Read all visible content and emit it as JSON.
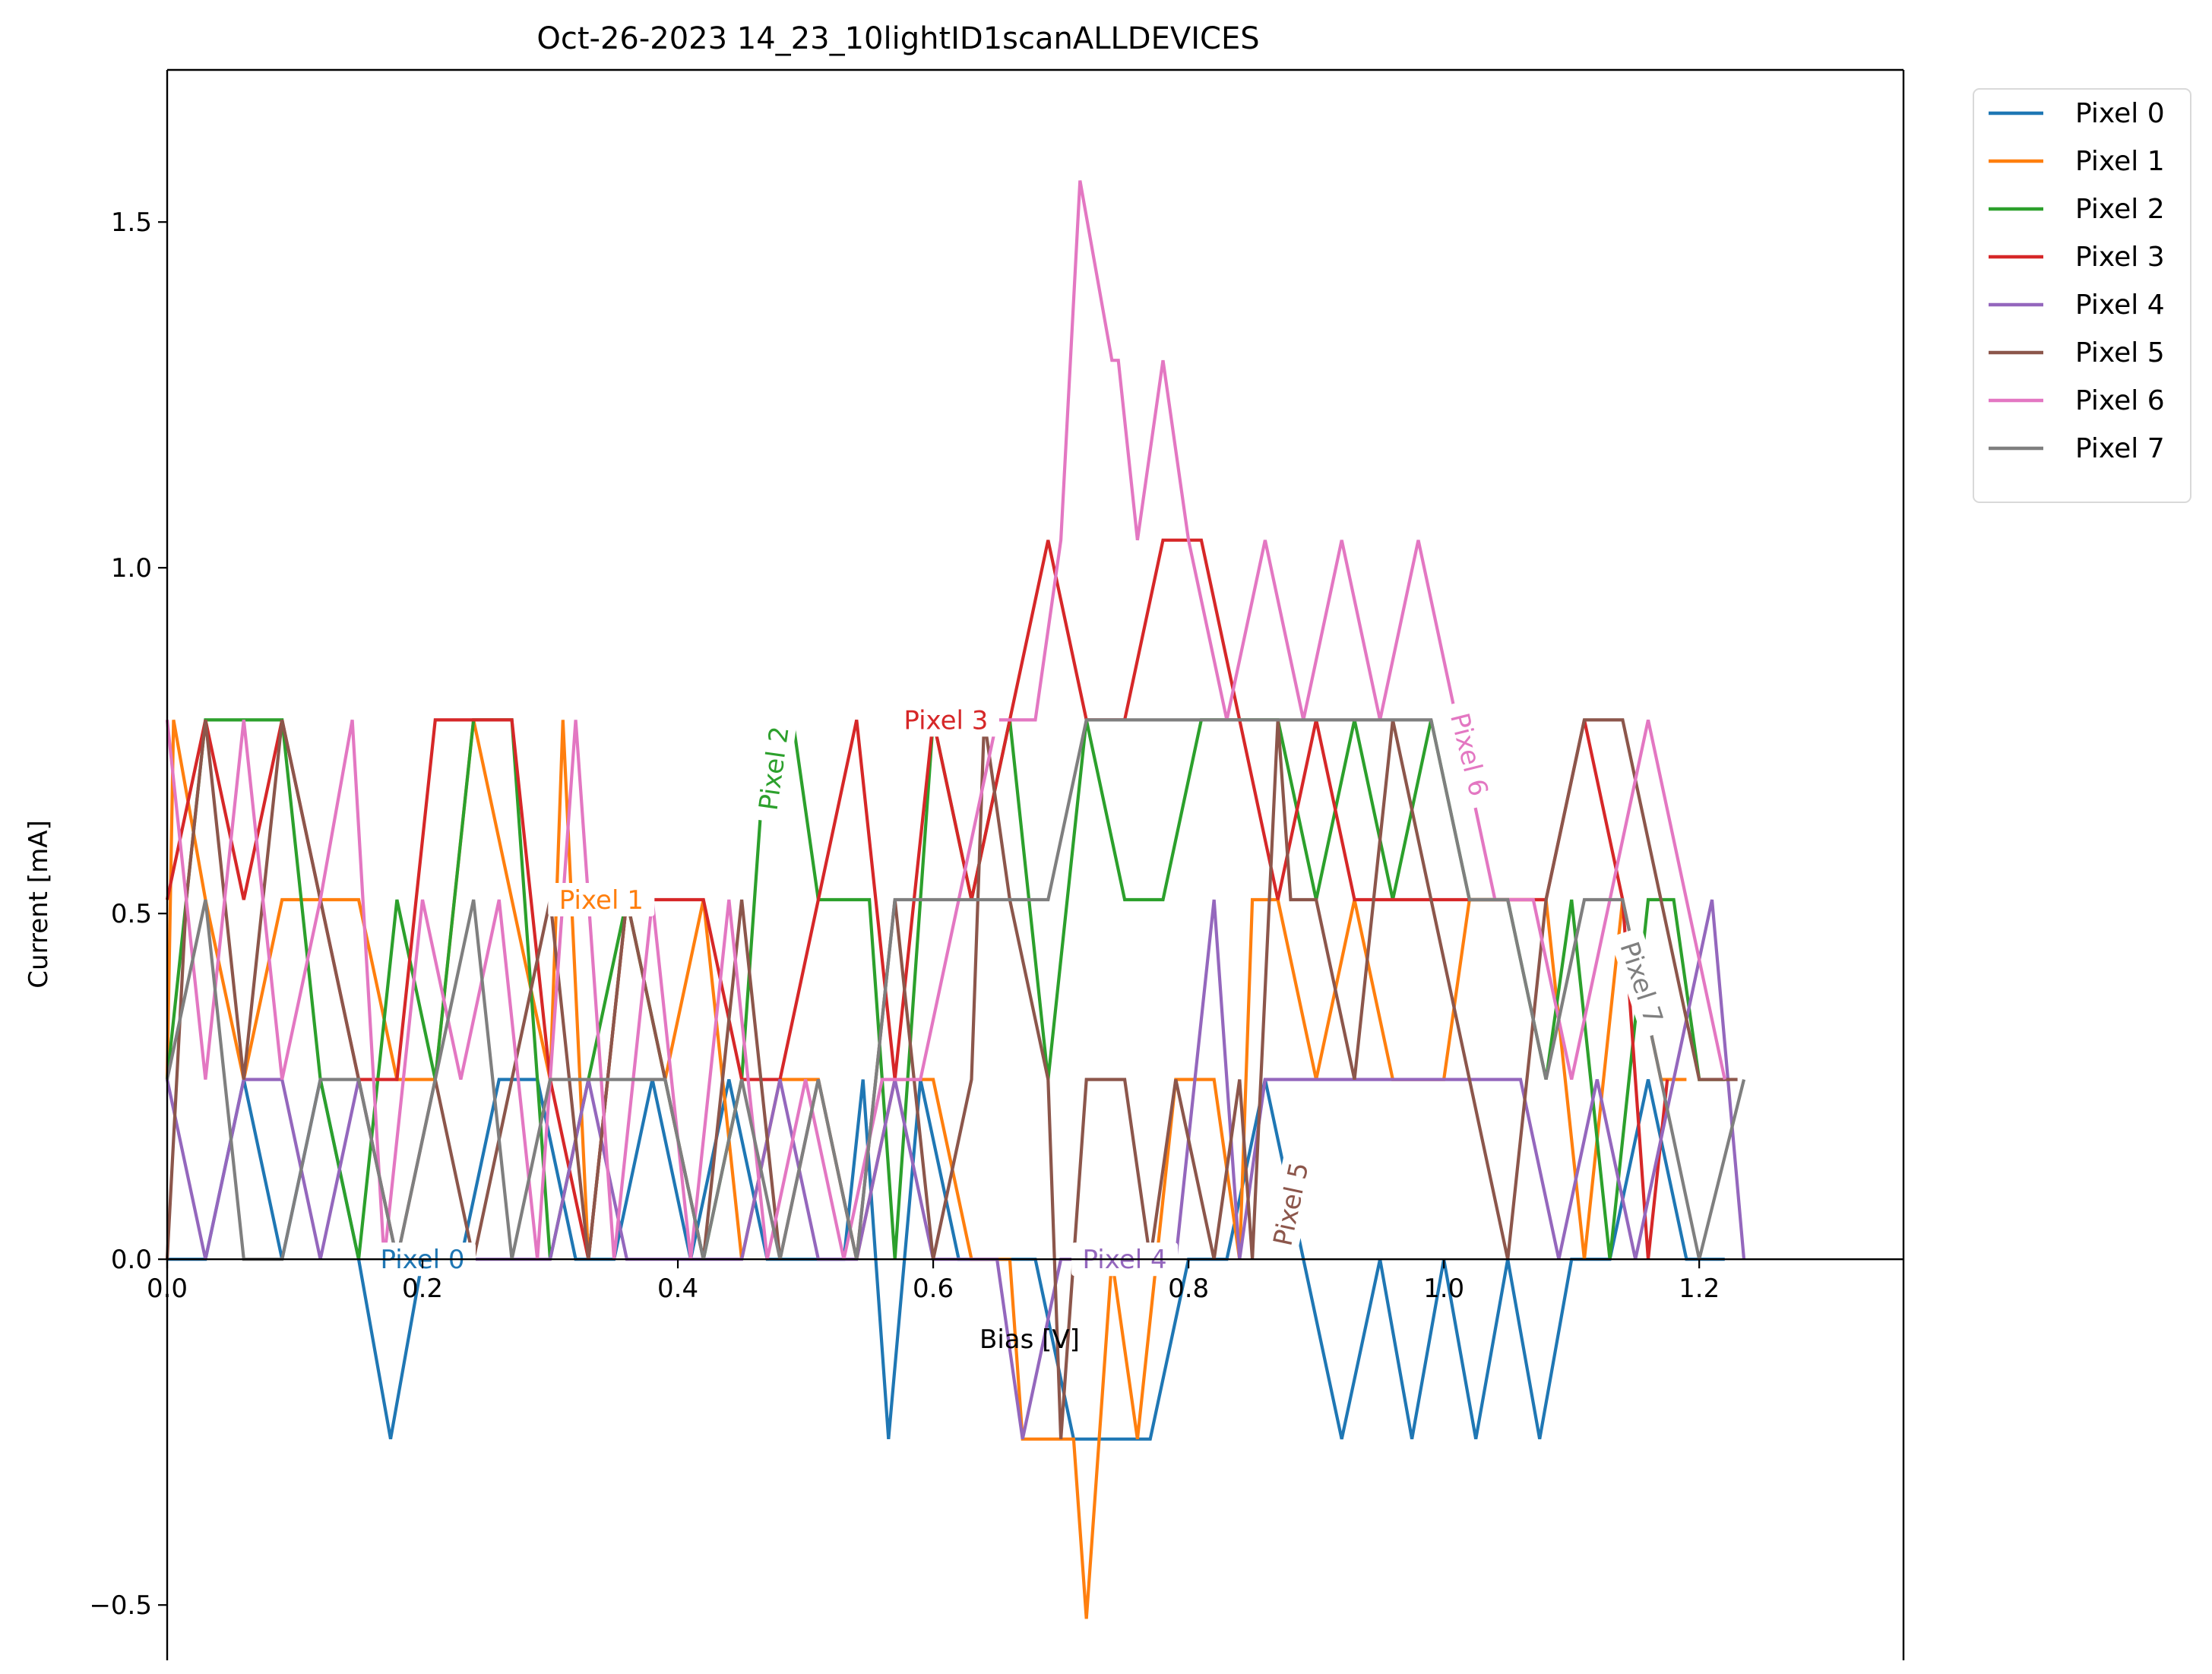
{
  "chart_data": {
    "type": "line",
    "title": "Oct-26-2023 14_23_10lightID1scanALLDEVICES",
    "xlabel": "Bias [V]",
    "ylabel": "Current [mA]",
    "xlim": [
      0.0,
      1.36
    ],
    "ylim": [
      -0.58,
      1.72
    ],
    "xticks": [
      0.0,
      0.2,
      0.4,
      0.6,
      0.8,
      1.0,
      1.2
    ],
    "xtick_labels": [
      "0.0",
      "0.2",
      "0.4",
      "0.6",
      "0.8",
      "1.0",
      "1.2"
    ],
    "yticks": [
      -0.5,
      0.0,
      0.5,
      1.0,
      1.5
    ],
    "ytick_labels": [
      "−0.5",
      "0.0",
      "0.5",
      "1.0",
      "1.5"
    ],
    "grid": false,
    "legend_position": "outside-top-right",
    "series": [
      {
        "name": "Pixel 0",
        "color": "#1f77b4",
        "x": [
          0.0,
          0.03,
          0.06,
          0.09,
          0.12,
          0.15,
          0.175,
          0.2,
          0.23,
          0.26,
          0.29,
          0.32,
          0.35,
          0.38,
          0.41,
          0.44,
          0.47,
          0.5,
          0.53,
          0.545,
          0.565,
          0.59,
          0.62,
          0.65,
          0.68,
          0.71,
          0.74,
          0.77,
          0.8,
          0.83,
          0.86,
          0.89,
          0.92,
          0.95,
          0.975,
          1.0,
          1.025,
          1.05,
          1.075,
          1.1,
          1.13,
          1.16,
          1.19,
          1.22
        ],
        "y": [
          0,
          0,
          0.26,
          0,
          0.26,
          0,
          -0.26,
          0,
          0,
          0.26,
          0.26,
          0,
          0,
          0.26,
          0,
          0.26,
          0,
          0,
          0,
          0.26,
          -0.26,
          0.26,
          0,
          0,
          0,
          -0.26,
          -0.26,
          -0.26,
          0,
          0,
          0.26,
          0,
          -0.26,
          0,
          -0.26,
          0,
          -0.26,
          0,
          -0.26,
          0,
          0,
          0.26,
          0,
          0
        ]
      },
      {
        "name": "Pixel 1",
        "color": "#ff7f0e",
        "x": [
          0.0,
          0.005,
          0.03,
          0.06,
          0.09,
          0.12,
          0.15,
          0.18,
          0.21,
          0.24,
          0.27,
          0.3,
          0.31,
          0.33,
          0.36,
          0.39,
          0.42,
          0.45,
          0.48,
          0.51,
          0.54,
          0.57,
          0.6,
          0.63,
          0.66,
          0.67,
          0.69,
          0.71,
          0.72,
          0.74,
          0.76,
          0.79,
          0.82,
          0.84,
          0.85,
          0.87,
          0.9,
          0.93,
          0.96,
          0.99,
          1.0,
          1.02,
          1.05,
          1.08,
          1.11,
          1.14,
          1.17,
          1.19
        ],
        "y": [
          0.26,
          0.78,
          0.52,
          0.26,
          0.52,
          0.52,
          0.52,
          0.26,
          0.26,
          0.78,
          0.52,
          0.26,
          0.78,
          0,
          0.52,
          0.26,
          0.52,
          0,
          0.26,
          0.26,
          0,
          0.26,
          0.26,
          0,
          0,
          -0.26,
          -0.26,
          -0.26,
          -0.52,
          0,
          -0.26,
          0.26,
          0.26,
          0,
          0.52,
          0.52,
          0.26,
          0.52,
          0.26,
          0.26,
          0.26,
          0.52,
          0.52,
          0.52,
          0,
          0.52,
          0.26,
          0.26
        ]
      },
      {
        "name": "Pixel 2",
        "color": "#2ca02c",
        "x": [
          0.0,
          0.03,
          0.06,
          0.09,
          0.12,
          0.15,
          0.18,
          0.21,
          0.24,
          0.27,
          0.3,
          0.33,
          0.36,
          0.39,
          0.42,
          0.45,
          0.47,
          0.49,
          0.51,
          0.53,
          0.55,
          0.57,
          0.6,
          0.63,
          0.66,
          0.69,
          0.72,
          0.75,
          0.78,
          0.81,
          0.84,
          0.87,
          0.9,
          0.93,
          0.96,
          0.99,
          1.02,
          1.05,
          1.08,
          1.1,
          1.13,
          1.16,
          1.18,
          1.2,
          1.22
        ],
        "y": [
          0.26,
          0.78,
          0.78,
          0.78,
          0.26,
          0,
          0.52,
          0.26,
          0.78,
          0.78,
          0,
          0.26,
          0.52,
          0.26,
          0,
          0.26,
          0.78,
          0.78,
          0.52,
          0.52,
          0.52,
          0,
          0.78,
          0.52,
          0.78,
          0.26,
          0.78,
          0.52,
          0.52,
          0.78,
          0.78,
          0.78,
          0.52,
          0.78,
          0.52,
          0.78,
          0.52,
          0.52,
          0.26,
          0.52,
          0,
          0.52,
          0.52,
          0.26,
          0.26
        ]
      },
      {
        "name": "Pixel 3",
        "color": "#d62728",
        "x": [
          0.0,
          0.03,
          0.06,
          0.09,
          0.12,
          0.15,
          0.18,
          0.21,
          0.24,
          0.27,
          0.3,
          0.33,
          0.36,
          0.39,
          0.42,
          0.45,
          0.48,
          0.51,
          0.54,
          0.57,
          0.6,
          0.63,
          0.66,
          0.69,
          0.72,
          0.75,
          0.78,
          0.81,
          0.84,
          0.87,
          0.9,
          0.93,
          0.96,
          0.99,
          1.02,
          1.05,
          1.08,
          1.11,
          1.14,
          1.16,
          1.175
        ],
        "y": [
          0.52,
          0.78,
          0.52,
          0.78,
          0.52,
          0.26,
          0.26,
          0.78,
          0.78,
          0.78,
          0.26,
          0,
          0.52,
          0.52,
          0.52,
          0.26,
          0.26,
          0.52,
          0.78,
          0.26,
          0.78,
          0.52,
          0.78,
          1.04,
          0.78,
          0.78,
          1.04,
          1.04,
          0.78,
          0.52,
          0.78,
          0.52,
          0.52,
          0.52,
          0.52,
          0.52,
          0.52,
          0.78,
          0.52,
          0,
          0.26
        ]
      },
      {
        "name": "Pixel 4",
        "color": "#9467bd",
        "x": [
          0.0,
          0.03,
          0.06,
          0.09,
          0.12,
          0.15,
          0.18,
          0.21,
          0.24,
          0.27,
          0.3,
          0.33,
          0.36,
          0.39,
          0.42,
          0.45,
          0.48,
          0.51,
          0.54,
          0.57,
          0.6,
          0.63,
          0.65,
          0.67,
          0.7,
          0.73,
          0.76,
          0.79,
          0.82,
          0.84,
          0.86,
          0.88,
          0.91,
          0.94,
          0.97,
          1.0,
          1.03,
          1.06,
          1.09,
          1.12,
          1.15,
          1.18,
          1.21,
          1.235
        ],
        "y": [
          0.26,
          0,
          0.26,
          0.26,
          0,
          0.26,
          0,
          0,
          0,
          0,
          0,
          0.26,
          0,
          0,
          0,
          0,
          0.26,
          0,
          0,
          0.26,
          0,
          0,
          0,
          -0.26,
          0,
          0,
          0,
          0,
          0.52,
          0,
          0.26,
          0.26,
          0.26,
          0.26,
          0.26,
          0.26,
          0.26,
          0.26,
          0,
          0.26,
          0,
          0.26,
          0.52,
          0
        ]
      },
      {
        "name": "Pixel 5",
        "color": "#8c564b",
        "x": [
          0.0,
          0.015,
          0.03,
          0.06,
          0.09,
          0.12,
          0.15,
          0.18,
          0.21,
          0.24,
          0.27,
          0.3,
          0.33,
          0.36,
          0.39,
          0.42,
          0.45,
          0.48,
          0.51,
          0.54,
          0.57,
          0.6,
          0.63,
          0.64,
          0.66,
          0.69,
          0.7,
          0.72,
          0.75,
          0.77,
          0.79,
          0.82,
          0.84,
          0.85,
          0.87,
          0.88,
          0.9,
          0.93,
          0.96,
          0.99,
          1.02,
          1.05,
          1.08,
          1.11,
          1.14,
          1.17,
          1.2,
          1.23
        ],
        "y": [
          0,
          0.52,
          0.78,
          0.26,
          0.78,
          0.52,
          0.26,
          0,
          0.26,
          0,
          0.26,
          0.52,
          0,
          0.52,
          0.26,
          0,
          0.52,
          0,
          0.26,
          0,
          0.52,
          0,
          0.26,
          0.78,
          0.52,
          0.26,
          -0.26,
          0.26,
          0.26,
          0,
          0.26,
          0,
          0.26,
          0,
          0.78,
          0.52,
          0.52,
          0.26,
          0.78,
          0.52,
          0.26,
          0,
          0.52,
          0.78,
          0.78,
          0.52,
          0.26,
          0.26
        ]
      },
      {
        "name": "Pixel 6",
        "color": "#e377c2",
        "x": [
          0.0,
          0.03,
          0.06,
          0.09,
          0.12,
          0.145,
          0.17,
          0.2,
          0.23,
          0.26,
          0.29,
          0.32,
          0.35,
          0.38,
          0.41,
          0.44,
          0.47,
          0.5,
          0.53,
          0.56,
          0.59,
          0.62,
          0.65,
          0.68,
          0.7,
          0.715,
          0.74,
          0.745,
          0.76,
          0.78,
          0.8,
          0.83,
          0.86,
          0.89,
          0.92,
          0.95,
          0.98,
          1.01,
          1.04,
          1.07,
          1.1,
          1.13,
          1.16,
          1.19,
          1.22
        ],
        "y": [
          0.78,
          0.26,
          0.78,
          0.26,
          0.52,
          0.78,
          0,
          0.52,
          0.26,
          0.52,
          0,
          0.78,
          0,
          0.52,
          0,
          0.52,
          0,
          0.26,
          0,
          0.26,
          0.26,
          0.52,
          0.78,
          0.78,
          1.04,
          1.56,
          1.3,
          1.3,
          1.04,
          1.3,
          1.04,
          0.78,
          1.04,
          0.78,
          1.04,
          0.78,
          1.04,
          0.78,
          0.52,
          0.52,
          0.26,
          0.52,
          0.78,
          0.52,
          0.26
        ]
      },
      {
        "name": "Pixel 7",
        "color": "#7f7f7f",
        "x": [
          0.0,
          0.03,
          0.06,
          0.09,
          0.12,
          0.15,
          0.18,
          0.21,
          0.24,
          0.27,
          0.3,
          0.33,
          0.36,
          0.39,
          0.42,
          0.45,
          0.48,
          0.51,
          0.54,
          0.57,
          0.6,
          0.63,
          0.66,
          0.69,
          0.72,
          0.75,
          0.78,
          0.81,
          0.84,
          0.87,
          0.9,
          0.93,
          0.96,
          0.99,
          1.02,
          1.05,
          1.08,
          1.11,
          1.14,
          1.17,
          1.2,
          1.235
        ],
        "y": [
          0.26,
          0.52,
          0,
          0,
          0.26,
          0.26,
          0,
          0.26,
          0.52,
          0,
          0.26,
          0.26,
          0.26,
          0.26,
          0,
          0.26,
          0,
          0.26,
          0,
          0.52,
          0.52,
          0.52,
          0.52,
          0.52,
          0.78,
          0.78,
          0.78,
          0.78,
          0.78,
          0.78,
          0.78,
          0.78,
          0.78,
          0.78,
          0.52,
          0.52,
          0.26,
          0.52,
          0.52,
          0.26,
          0,
          0.26
        ]
      }
    ],
    "annotations": [
      {
        "text": "Pixel 0",
        "series": 0,
        "x": 0.2,
        "y": 0.0,
        "rotation": 0
      },
      {
        "text": "Pixel 1",
        "series": 1,
        "x": 0.34,
        "y": 0.52,
        "rotation": 0
      },
      {
        "text": "Pixel 2",
        "series": 2,
        "x": 0.475,
        "y": 0.71,
        "rotation": -82
      },
      {
        "text": "Pixel 3",
        "series": 3,
        "x": 0.61,
        "y": 0.78,
        "rotation": 0
      },
      {
        "text": "Pixel 4",
        "series": 4,
        "x": 0.75,
        "y": 0.0,
        "rotation": 0
      },
      {
        "text": "Pixel 5",
        "series": 5,
        "x": 0.88,
        "y": 0.08,
        "rotation": -78
      },
      {
        "text": "Pixel 6",
        "series": 6,
        "x": 1.02,
        "y": 0.73,
        "rotation": 76
      },
      {
        "text": "Pixel 7",
        "series": 7,
        "x": 1.155,
        "y": 0.4,
        "rotation": 72
      }
    ]
  }
}
